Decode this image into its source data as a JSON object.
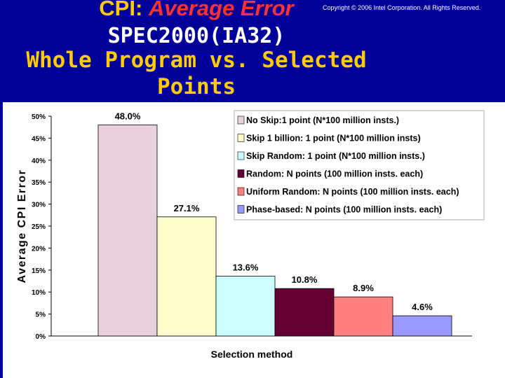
{
  "header": {
    "title_prefix": "CPI: ",
    "title_emphasis": "Average Error",
    "line2": "SPEC2000(IA32)",
    "line3": "Whole Program vs. Selected",
    "line4": "Points",
    "copyright": "Copyright © 2006 Intel Corporation. All Rights Reserved."
  },
  "colors": {
    "header_bg": "#000099",
    "title_yellow": "#ffcc00",
    "title_red": "#ff3333"
  },
  "chart_data": {
    "type": "bar",
    "title": "",
    "xlabel": "Selection method",
    "ylabel": "Average CPI Error",
    "ylim": [
      0,
      0.5
    ],
    "yticks": [
      "0%",
      "5%",
      "10%",
      "15%",
      "20%",
      "25%",
      "30%",
      "35%",
      "40%",
      "45%",
      "50%"
    ],
    "grid": false,
    "legend_position": "top-right",
    "series": [
      {
        "name": "No Skip:1 point (N*100 million insts.)",
        "value": 0.48,
        "label": "48.0%",
        "color": "#e8d0dc"
      },
      {
        "name": "Skip 1 billion: 1 point (N*100 million insts)",
        "value": 0.271,
        "label": "27.1%",
        "color": "#ffffcc"
      },
      {
        "name": "Skip Random: 1 point (N*100 million insts.)",
        "value": 0.136,
        "label": "13.6%",
        "color": "#ccffff"
      },
      {
        "name": "Random: N points (100 million insts. each)",
        "value": 0.108,
        "label": "10.8%",
        "color": "#660033"
      },
      {
        "name": "Uniform Random: N points (100 million insts. each)",
        "value": 0.089,
        "label": "8.9%",
        "color": "#ff8080"
      },
      {
        "name": "Phase-based: N points (100 million insts. each)",
        "value": 0.046,
        "label": "4.6%",
        "color": "#9999ff"
      }
    ]
  }
}
